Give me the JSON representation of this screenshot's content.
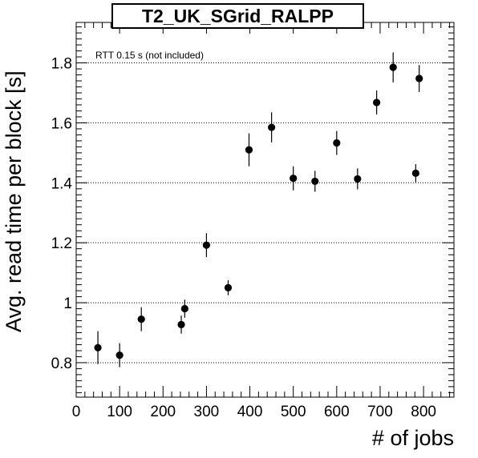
{
  "chart_data": {
    "type": "scatter",
    "title": "T2_UK_SGrid_RALPP",
    "xlabel": "# of jobs",
    "ylabel": "Avg. read time per block [s]",
    "annotation": "RTT 0.15 s (not included)",
    "xlim": [
      0,
      870
    ],
    "ylim": [
      0.685,
      1.935
    ],
    "xticks": [
      0,
      100,
      200,
      300,
      400,
      500,
      600,
      700,
      800
    ],
    "xtick_labels": [
      "0",
      "100",
      "200",
      "300",
      "400",
      "500",
      "600",
      "700",
      "800"
    ],
    "yticks": [
      0.8,
      1.0,
      1.2,
      1.4,
      1.6,
      1.8
    ],
    "ytick_labels": [
      "0.8",
      "1",
      "1.2",
      "1.4",
      "1.6",
      "1.8"
    ],
    "grid": "horizontal dotted",
    "legend": "none",
    "colors": {
      "marker": "#000000",
      "axis": "#000000",
      "grid": "#000000"
    },
    "points": [
      {
        "x": 50,
        "y": 0.85,
        "err": 0.055
      },
      {
        "x": 100,
        "y": 0.825,
        "err": 0.04
      },
      {
        "x": 150,
        "y": 0.945,
        "err": 0.04
      },
      {
        "x": 242,
        "y": 0.927,
        "err": 0.03
      },
      {
        "x": 250,
        "y": 0.98,
        "err": 0.03
      },
      {
        "x": 300,
        "y": 1.192,
        "err": 0.04
      },
      {
        "x": 350,
        "y": 1.05,
        "err": 0.025
      },
      {
        "x": 398,
        "y": 1.51,
        "err": 0.055
      },
      {
        "x": 450,
        "y": 1.585,
        "err": 0.05
      },
      {
        "x": 500,
        "y": 1.415,
        "err": 0.04
      },
      {
        "x": 550,
        "y": 1.405,
        "err": 0.035
      },
      {
        "x": 600,
        "y": 1.533,
        "err": 0.04
      },
      {
        "x": 648,
        "y": 1.413,
        "err": 0.035
      },
      {
        "x": 692,
        "y": 1.668,
        "err": 0.04
      },
      {
        "x": 730,
        "y": 1.785,
        "err": 0.05
      },
      {
        "x": 782,
        "y": 1.432,
        "err": 0.03
      },
      {
        "x": 790,
        "y": 1.748,
        "err": 0.045
      }
    ]
  }
}
